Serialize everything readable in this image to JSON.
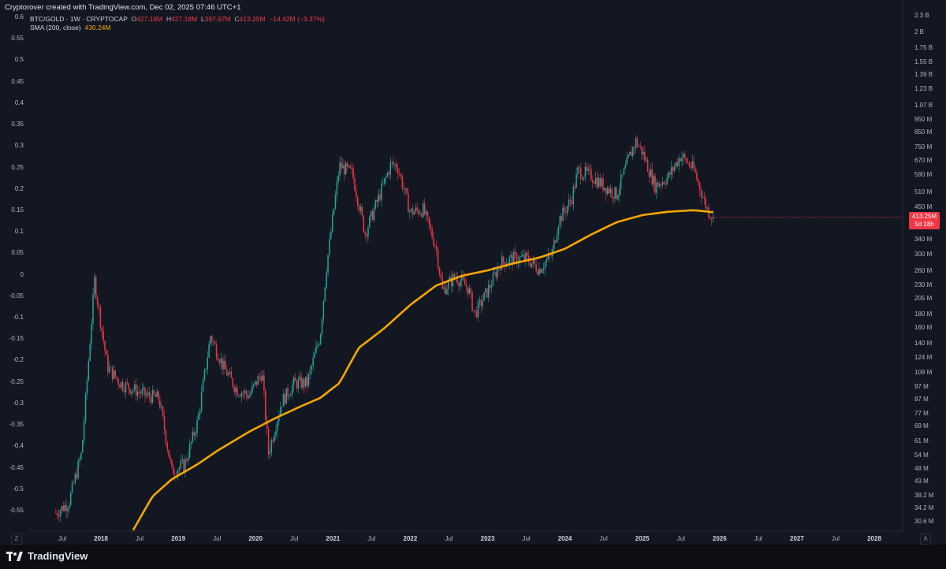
{
  "header": {
    "attribution": "Cryptorover created with TradingView.com, Dec 02, 2025 07:46 UTC+1"
  },
  "legend": {
    "symbol": "BTC/GOLD · 1W · CRYPTOCAP",
    "o_label": "O",
    "o_value": "427.18M",
    "h_label": "H",
    "h_value": "427.18M",
    "l_label": "L",
    "l_value": "397.97M",
    "c_label": "C",
    "c_value": "413.25M",
    "change": "−14.42M (−3.37%)",
    "sma_label": "SMA (200, close)",
    "sma_value": "430.24M"
  },
  "price_badge": {
    "value": "413.25M",
    "countdown": "5d 18h"
  },
  "footer": {
    "brand": "TradingView",
    "z_label": "Z",
    "a_label": "A"
  },
  "colors": {
    "up": "#26a69a",
    "down": "#f23645",
    "sma": "#f7a600",
    "bg": "#131722"
  },
  "chart_data": {
    "type": "line",
    "title": "",
    "xlabel": "",
    "ylabel": "",
    "grid": false,
    "x_ticks": [
      {
        "label": "Jul",
        "date": "2017-07"
      },
      {
        "label": "2018",
        "date": "2018-01",
        "year": true
      },
      {
        "label": "Jul",
        "date": "2018-07"
      },
      {
        "label": "2019",
        "date": "2019-01",
        "year": true
      },
      {
        "label": "Jul",
        "date": "2019-07"
      },
      {
        "label": "2020",
        "date": "2020-01",
        "year": true
      },
      {
        "label": "Jul",
        "date": "2020-07"
      },
      {
        "label": "2021",
        "date": "2021-01",
        "year": true
      },
      {
        "label": "Jul",
        "date": "2021-07"
      },
      {
        "label": "2022",
        "date": "2022-01",
        "year": true
      },
      {
        "label": "Jul",
        "date": "2022-07"
      },
      {
        "label": "2023",
        "date": "2023-01",
        "year": true
      },
      {
        "label": "Jul",
        "date": "2023-07"
      },
      {
        "label": "2024",
        "date": "2024-01",
        "year": true
      },
      {
        "label": "Jul",
        "date": "2024-07"
      },
      {
        "label": "2025",
        "date": "2025-01",
        "year": true
      },
      {
        "label": "Jul",
        "date": "2025-07"
      },
      {
        "label": "2026",
        "date": "2026-01",
        "year": true
      },
      {
        "label": "Jul",
        "date": "2026-07"
      },
      {
        "label": "2027",
        "date": "2027-01",
        "year": true
      },
      {
        "label": "Jul",
        "date": "2027-07"
      },
      {
        "label": "2028",
        "date": "2028-01",
        "year": true
      }
    ],
    "left_axis": [
      "0.6",
      "0.55",
      "0.5",
      "0.45",
      "0.4",
      "0.35",
      "0.3",
      "0.25",
      "0.2",
      "0.15",
      "0.1",
      "0.05",
      "0",
      "-0.05",
      "-0.1",
      "-0.15",
      "-0.2",
      "-0.25",
      "-0.3",
      "-0.35",
      "-0.4",
      "-0.45",
      "-0.5",
      "-0.55"
    ],
    "right_axis": [
      "2.3 B",
      "2 B",
      "1.75 B",
      "1.55 B",
      "1.39 B",
      "1.23 B",
      "1.07 B",
      "950 M",
      "850 M",
      "750 M",
      "670 M",
      "590 M",
      "510 M",
      "450 M",
      "340 M",
      "300 M",
      "260 M",
      "230 M",
      "205 M",
      "180 M",
      "160 M",
      "140 M",
      "124 M",
      "109 M",
      "97 M",
      "87 M",
      "77 M",
      "69 M",
      "61 M",
      "54 M",
      "48 M",
      "43 M",
      "38.2 M",
      "34.2 M",
      "30.6 M"
    ],
    "y_scale": "log",
    "ylim": [
      "29M",
      "2.4B"
    ],
    "series": [
      {
        "name": "BTC/GOLD",
        "kind": "candles",
        "points": [
          [
            "2017-06",
            33
          ],
          [
            "2017-08",
            36
          ],
          [
            "2017-10",
            55
          ],
          [
            "2017-12",
            240
          ],
          [
            "2018-02",
            115
          ],
          [
            "2018-04",
            100
          ],
          [
            "2018-06",
            95
          ],
          [
            "2018-08",
            90
          ],
          [
            "2018-10",
            88
          ],
          [
            "2018-12",
            47
          ],
          [
            "2019-02",
            50
          ],
          [
            "2019-04",
            72
          ],
          [
            "2019-06",
            150
          ],
          [
            "2019-08",
            115
          ],
          [
            "2019-10",
            95
          ],
          [
            "2019-12",
            90
          ],
          [
            "2020-02",
            110
          ],
          [
            "2020-03",
            55
          ],
          [
            "2020-05",
            85
          ],
          [
            "2020-07",
            100
          ],
          [
            "2020-09",
            100
          ],
          [
            "2020-11",
            150
          ],
          [
            "2020-12",
            270
          ],
          [
            "2021-02",
            640
          ],
          [
            "2021-04",
            600
          ],
          [
            "2021-06",
            360
          ],
          [
            "2021-08",
            480
          ],
          [
            "2021-10",
            650
          ],
          [
            "2021-11",
            640
          ],
          [
            "2022-01",
            430
          ],
          [
            "2022-03",
            440
          ],
          [
            "2022-05",
            320
          ],
          [
            "2022-06",
            220
          ],
          [
            "2022-08",
            250
          ],
          [
            "2022-10",
            225
          ],
          [
            "2022-11",
            180
          ],
          [
            "2023-01",
            220
          ],
          [
            "2023-03",
            280
          ],
          [
            "2023-05",
            290
          ],
          [
            "2023-07",
            290
          ],
          [
            "2023-09",
            265
          ],
          [
            "2023-11",
            300
          ],
          [
            "2023-12",
            400
          ],
          [
            "2024-02",
            480
          ],
          [
            "2024-03",
            610
          ],
          [
            "2024-05",
            590
          ],
          [
            "2024-07",
            540
          ],
          [
            "2024-09",
            500
          ],
          [
            "2024-11",
            690
          ],
          [
            "2024-12",
            790
          ],
          [
            "2025-01",
            720
          ],
          [
            "2025-03",
            540
          ],
          [
            "2025-05",
            580
          ],
          [
            "2025-07",
            700
          ],
          [
            "2025-09",
            620
          ],
          [
            "2025-11",
            445
          ],
          [
            "2025-12",
            413.25
          ]
        ]
      },
      {
        "name": "SMA (200, close)",
        "kind": "line",
        "points": [
          [
            "2018-06",
            28.5
          ],
          [
            "2018-09",
            38
          ],
          [
            "2018-12",
            44
          ],
          [
            "2019-04",
            50
          ],
          [
            "2019-07",
            56
          ],
          [
            "2019-12",
            66
          ],
          [
            "2020-04",
            74
          ],
          [
            "2020-08",
            82
          ],
          [
            "2020-11",
            88
          ],
          [
            "2021-02",
            100
          ],
          [
            "2021-05",
            135
          ],
          [
            "2021-09",
            160
          ],
          [
            "2022-01",
            195
          ],
          [
            "2022-05",
            230
          ],
          [
            "2022-09",
            250
          ],
          [
            "2023-01",
            262
          ],
          [
            "2023-05",
            278
          ],
          [
            "2023-09",
            292
          ],
          [
            "2024-01",
            315
          ],
          [
            "2024-05",
            355
          ],
          [
            "2024-09",
            395
          ],
          [
            "2025-01",
            420
          ],
          [
            "2025-05",
            432
          ],
          [
            "2025-09",
            438
          ],
          [
            "2025-12",
            430.24
          ]
        ]
      }
    ]
  }
}
